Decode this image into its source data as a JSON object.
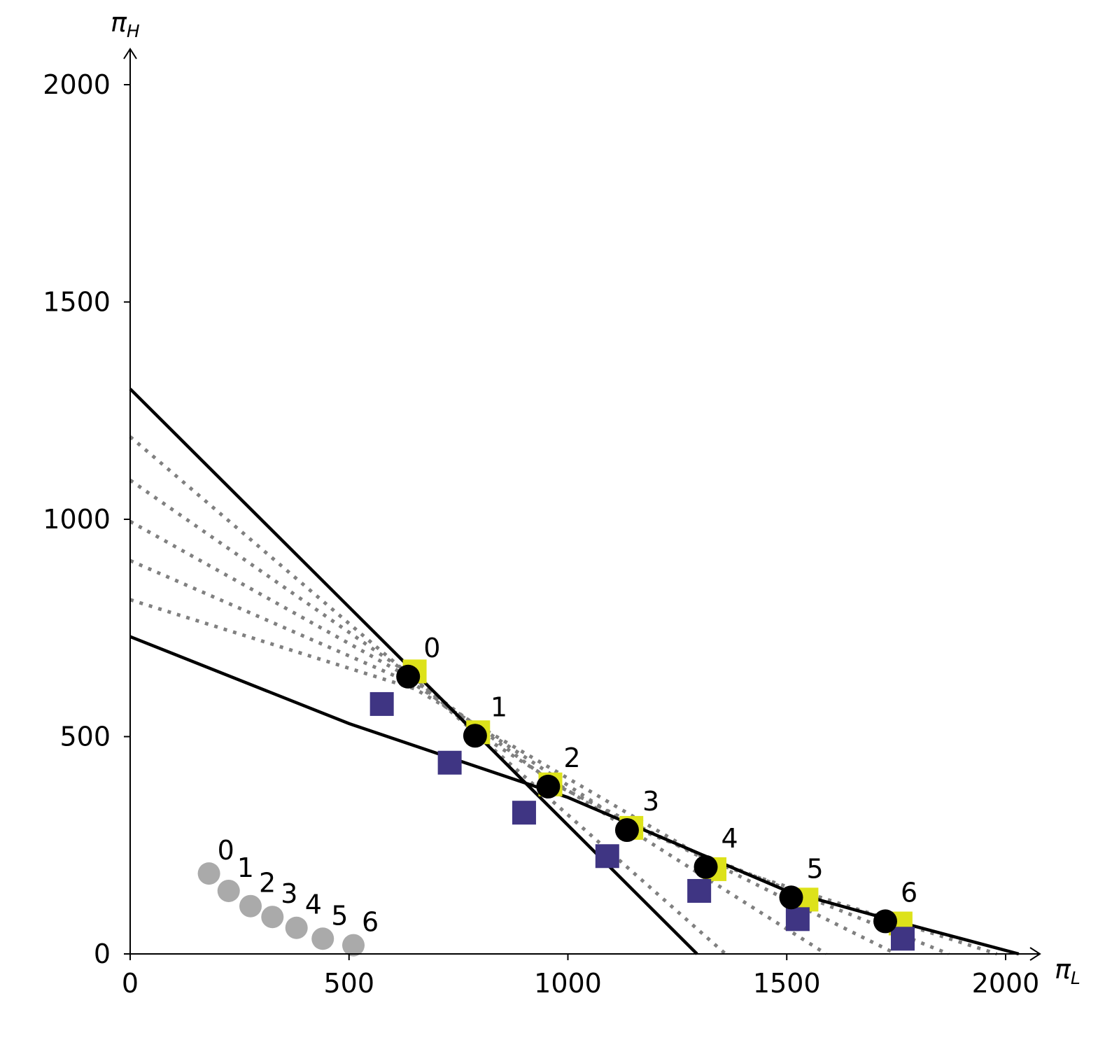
{
  "chart_data": {
    "type": "scatter",
    "xlabel": {
      "symbol": "π",
      "sub": "L"
    },
    "ylabel": {
      "symbol": "π",
      "sub": "H"
    },
    "xlim": [
      0,
      2050
    ],
    "ylim": [
      0,
      2050
    ],
    "x_ticks": [
      0,
      500,
      1000,
      1500,
      2000
    ],
    "y_ticks": [
      0,
      500,
      1000,
      1500,
      2000
    ],
    "x_tick_labels": [
      "0",
      "500",
      "1000",
      "1500",
      "2000"
    ],
    "y_tick_labels": [
      "0",
      "500",
      "1000",
      "1500",
      "2000"
    ],
    "grid": false,
    "colors": {
      "solid_line": "#000000",
      "dotted_line": "#808080",
      "yellow_square": "#dde21a",
      "purple_square": "#3f3583",
      "black_point": "#000000",
      "gray_point": "#aaaaaa"
    },
    "solid_lines": [
      {
        "points": [
          [
            0,
            1300
          ],
          [
            1295,
            0
          ]
        ]
      },
      {
        "points": [
          [
            0,
            730
          ],
          [
            500,
            530
          ],
          [
            1000,
            360
          ],
          [
            1500,
            145
          ],
          [
            1750,
            75
          ],
          [
            2030,
            0
          ]
        ]
      }
    ],
    "dotted_lines": [
      {
        "points": [
          [
            0,
            1190
          ],
          [
            640,
            640
          ],
          [
            1360,
            0
          ]
        ]
      },
      {
        "points": [
          [
            0,
            1090
          ],
          [
            650,
            635
          ],
          [
            790,
            510
          ],
          [
            1590,
            0
          ]
        ]
      },
      {
        "points": [
          [
            0,
            995
          ],
          [
            650,
            630
          ],
          [
            970,
            390
          ],
          [
            1750,
            0
          ]
        ]
      },
      {
        "points": [
          [
            0,
            905
          ],
          [
            650,
            620
          ],
          [
            1140,
            295
          ],
          [
            1870,
            0
          ]
        ]
      },
      {
        "points": [
          [
            0,
            815
          ],
          [
            650,
            610
          ],
          [
            1330,
            210
          ],
          [
            1980,
            0
          ]
        ]
      }
    ],
    "series": [
      {
        "marker": "square",
        "color": "yellow",
        "points": [
          [
            650,
            650
          ],
          [
            795,
            510
          ],
          [
            960,
            390
          ],
          [
            1145,
            290
          ],
          [
            1335,
            195
          ],
          [
            1545,
            125
          ],
          [
            1760,
            70
          ]
        ]
      },
      {
        "marker": "square",
        "color": "purple",
        "points": [
          [
            575,
            575
          ],
          [
            730,
            440
          ],
          [
            900,
            325
          ],
          [
            1090,
            225
          ],
          [
            1300,
            145
          ],
          [
            1525,
            80
          ],
          [
            1765,
            35
          ]
        ]
      },
      {
        "marker": "circle",
        "color": "black",
        "points": [
          [
            635,
            638
          ],
          [
            788,
            502
          ],
          [
            955,
            385
          ],
          [
            1135,
            285
          ],
          [
            1315,
            200
          ],
          [
            1510,
            130
          ],
          [
            1725,
            75
          ]
        ],
        "labels": [
          "0",
          "1",
          "2",
          "3",
          "4",
          "5",
          "6"
        ]
      },
      {
        "marker": "circle",
        "color": "gray",
        "points": [
          [
            180,
            185
          ],
          [
            225,
            145
          ],
          [
            275,
            110
          ],
          [
            325,
            85
          ],
          [
            380,
            60
          ],
          [
            440,
            35
          ],
          [
            510,
            20
          ]
        ],
        "labels": [
          "0",
          "1",
          "2",
          "3",
          "4",
          "5",
          "6"
        ]
      }
    ]
  }
}
